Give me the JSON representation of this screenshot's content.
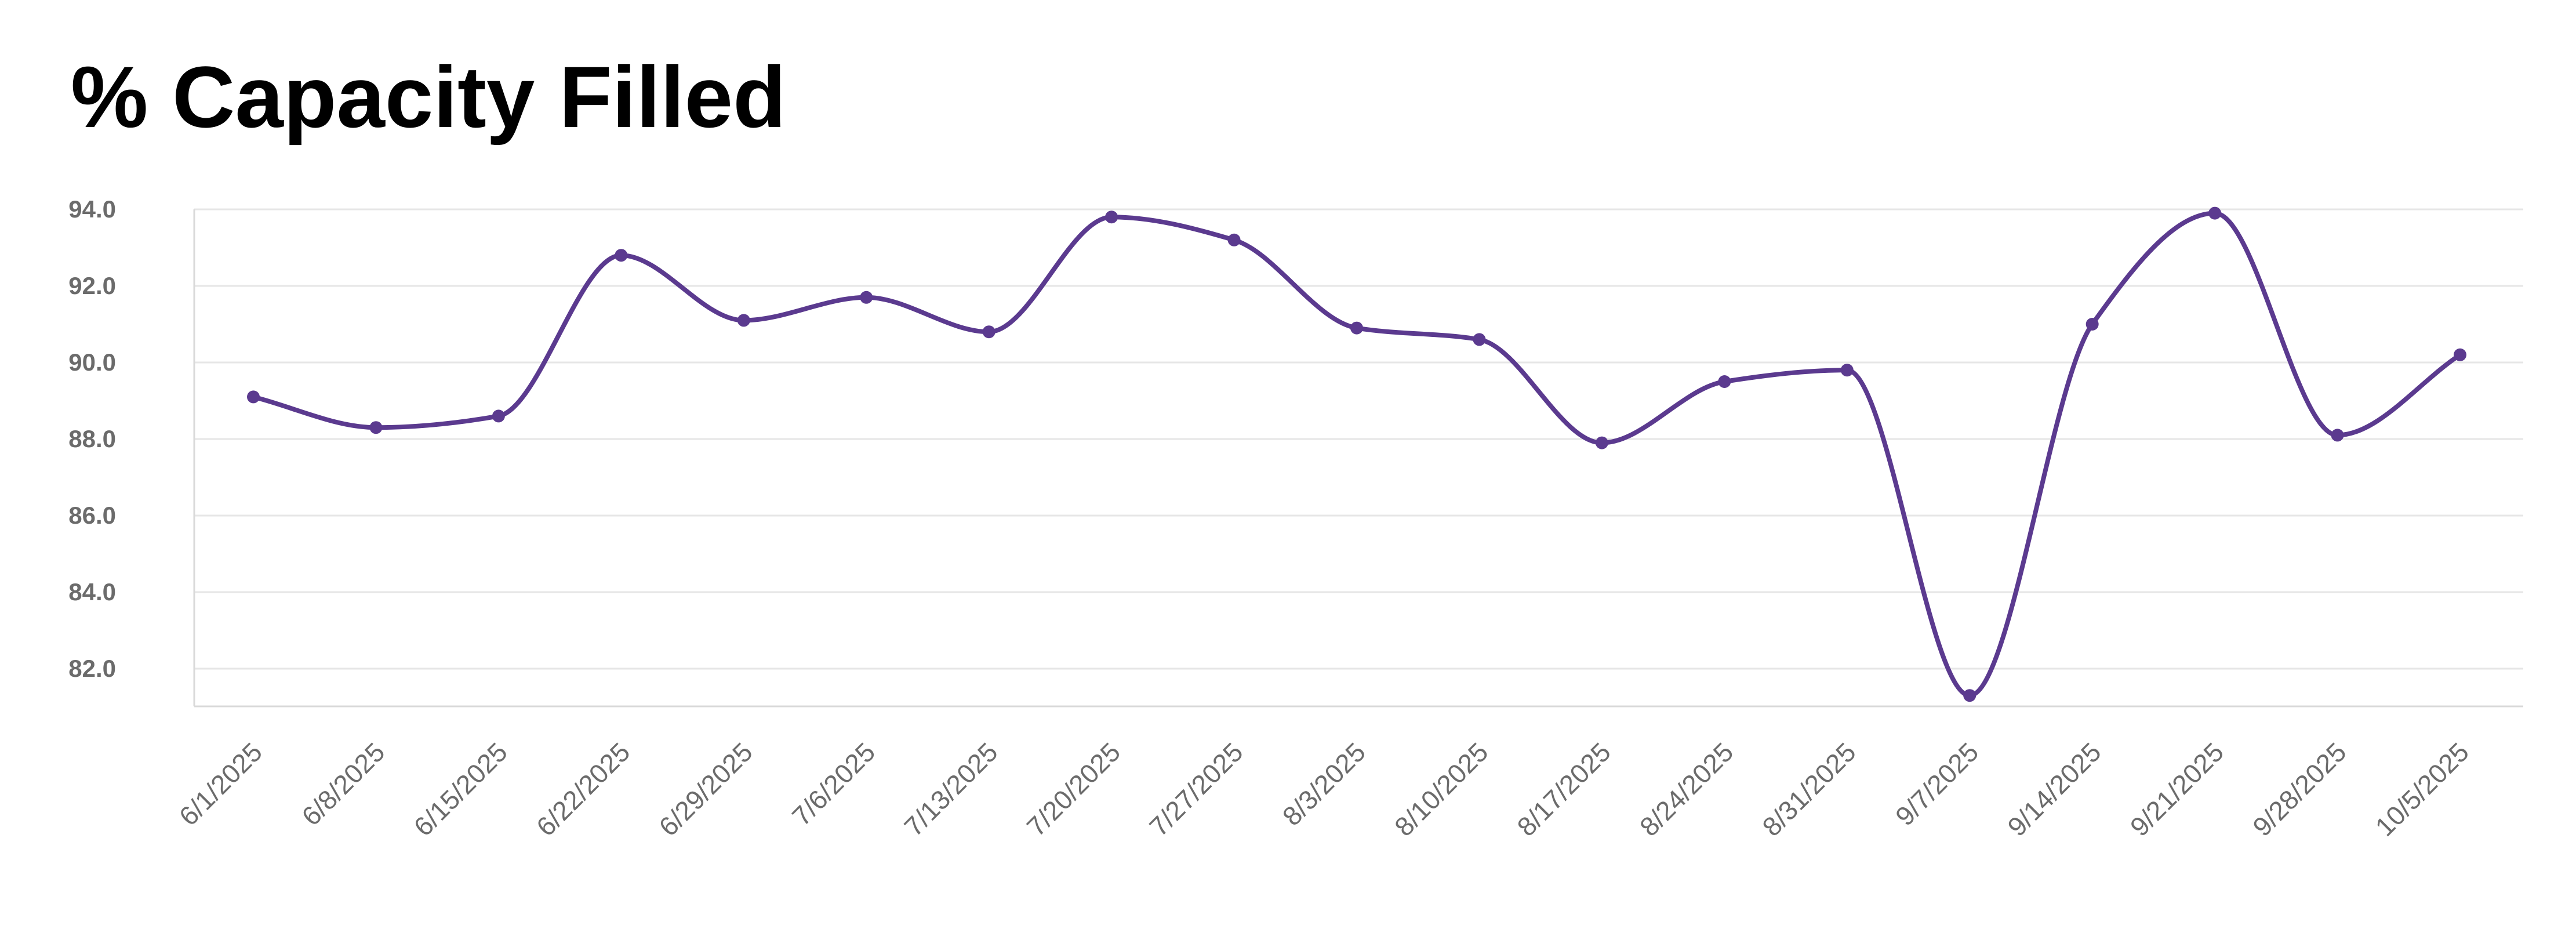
{
  "title": "% Capacity Filled",
  "colors": {
    "series_line": "#5b3a8f",
    "grid": "#e6e6e6",
    "axis": "#d9d9d9",
    "tick_label": "#6b6b6b",
    "background": "#ffffff"
  },
  "chart_data": {
    "type": "line",
    "title": "% Capacity Filled",
    "xlabel": "",
    "ylabel": "",
    "categories": [
      "6/1/2025",
      "6/8/2025",
      "6/15/2025",
      "6/22/2025",
      "6/29/2025",
      "7/6/2025",
      "7/13/2025",
      "7/20/2025",
      "7/27/2025",
      "8/3/2025",
      "8/10/2025",
      "8/17/2025",
      "8/24/2025",
      "8/31/2025",
      "9/7/2025",
      "9/14/2025",
      "9/21/2025",
      "9/28/2025",
      "10/5/2025"
    ],
    "series": [
      {
        "values": [
          89.1,
          88.3,
          88.6,
          92.8,
          91.1,
          91.7,
          90.8,
          93.8,
          93.2,
          90.9,
          90.6,
          87.9,
          89.5,
          89.8,
          81.3,
          91.0,
          93.9,
          88.1,
          90.2
        ]
      }
    ],
    "yticks": [
      "82.0",
      "84.0",
      "86.0",
      "88.0",
      "90.0",
      "92.0",
      "94.0"
    ],
    "ylim": [
      81.0,
      94.0
    ],
    "grid": true,
    "legend": "none",
    "smooth": true
  }
}
